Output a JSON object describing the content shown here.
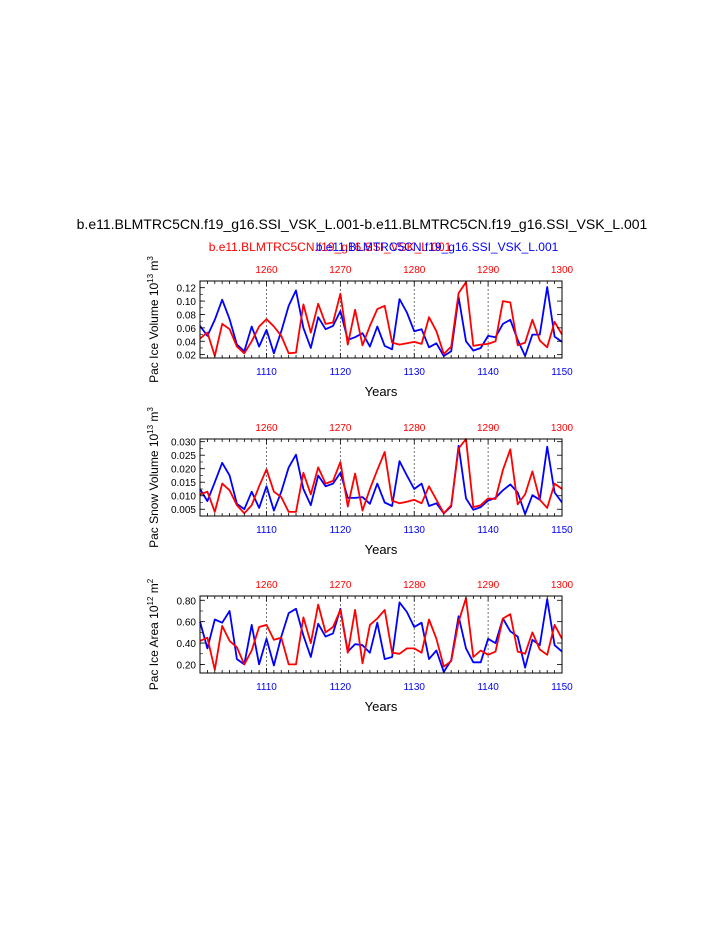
{
  "page": {
    "main_title": "b.e11.BLMTRC5CN.f19_g16.SSI_VSK_L.001-b.e11.BLMTRC5CN.f19_g16.SSI_VSK_L.001",
    "case_red": "b.e11.BLMTRC5CN.f19_g16.SSI_VSK_L.001",
    "case_blue": "b.e11.BLMTRC5CN.f19_g16.SSI_VSK_L.001"
  },
  "colors": {
    "red_series": "#ff0000",
    "blue_series": "#0000ff",
    "axis": "#000000",
    "grid": "#555555"
  },
  "chart_data": [
    {
      "type": "line",
      "ylabel": "Pac Ice Volume 10^13 m^3",
      "ylabel_main": "Pac Ice Volume 10",
      "ylabel_exp": "13",
      "ylabel_unit": "m",
      "ylabel_unit_exp": "3",
      "xlabel": "Years",
      "ylim": [
        0.015,
        0.13
      ],
      "ytick_values": [
        0.02,
        0.04,
        0.06,
        0.08,
        0.1,
        0.12
      ],
      "ytick_labels": [
        "0.02",
        "0.04",
        "0.06",
        "0.08",
        "0.10",
        "0.12"
      ],
      "x_bottom": {
        "range": [
          1101,
          1150
        ],
        "ticks": [
          1110,
          1120,
          1130,
          1140,
          1150
        ],
        "color": "#0000ff"
      },
      "x_top": {
        "range": [
          1251,
          1300
        ],
        "ticks": [
          1260,
          1270,
          1280,
          1290,
          1300
        ],
        "color": "#ff0000"
      },
      "vertical_grid_at_bottom_x": [
        1110,
        1120,
        1130,
        1140
      ],
      "series": [
        {
          "color": "#0000ff",
          "axis": "bottom",
          "values": [
            0.063,
            0.048,
            0.072,
            0.102,
            0.073,
            0.035,
            0.025,
            0.062,
            0.032,
            0.057,
            0.022,
            0.055,
            0.093,
            0.116,
            0.06,
            0.03,
            0.076,
            0.058,
            0.063,
            0.085,
            0.042,
            0.046,
            0.052,
            0.032,
            0.062,
            0.033,
            0.028,
            0.103,
            0.083,
            0.055,
            0.058,
            0.031,
            0.037,
            0.018,
            0.025,
            0.106,
            0.04,
            0.026,
            0.03,
            0.048,
            0.046,
            0.066,
            0.072,
            0.042,
            0.018,
            0.05,
            0.05,
            0.121,
            0.047,
            0.039
          ]
        },
        {
          "color": "#ff0000",
          "axis": "top",
          "values": [
            0.044,
            0.053,
            0.018,
            0.066,
            0.058,
            0.032,
            0.022,
            0.04,
            0.062,
            0.073,
            0.062,
            0.048,
            0.022,
            0.023,
            0.095,
            0.053,
            0.096,
            0.066,
            0.068,
            0.111,
            0.035,
            0.087,
            0.034,
            0.063,
            0.088,
            0.093,
            0.038,
            0.035,
            0.037,
            0.039,
            0.036,
            0.076,
            0.055,
            0.021,
            0.032,
            0.112,
            0.128,
            0.033,
            0.035,
            0.036,
            0.04,
            0.1,
            0.098,
            0.034,
            0.038,
            0.072,
            0.041,
            0.031,
            0.069,
            0.05
          ]
        }
      ]
    },
    {
      "type": "line",
      "ylabel": "Pac Snow Volume 10^13 m^3",
      "ylabel_main": "Pac Snow Volume 10",
      "ylabel_exp": "13",
      "ylabel_unit": "m",
      "ylabel_unit_exp": "3",
      "xlabel": "Years",
      "ylim": [
        0.0025,
        0.031
      ],
      "ytick_values": [
        0.005,
        0.01,
        0.015,
        0.02,
        0.025,
        0.03
      ],
      "ytick_labels": [
        "0.005",
        "0.010",
        "0.015",
        "0.020",
        "0.025",
        "0.030"
      ],
      "x_bottom": {
        "range": [
          1101,
          1150
        ],
        "ticks": [
          1110,
          1120,
          1130,
          1140,
          1150
        ],
        "color": "#0000ff"
      },
      "x_top": {
        "range": [
          1251,
          1300
        ],
        "ticks": [
          1260,
          1270,
          1280,
          1290,
          1300
        ],
        "color": "#ff0000"
      },
      "vertical_grid_at_bottom_x": [
        1110,
        1120,
        1130,
        1140
      ],
      "series": [
        {
          "color": "#0000ff",
          "axis": "bottom",
          "values": [
            0.0125,
            0.008,
            0.015,
            0.0222,
            0.0175,
            0.007,
            0.005,
            0.0115,
            0.0055,
            0.0135,
            0.0045,
            0.0115,
            0.0205,
            0.0252,
            0.0125,
            0.0065,
            0.0175,
            0.0135,
            0.0145,
            0.0185,
            0.0092,
            0.0092,
            0.0095,
            0.007,
            0.0145,
            0.0075,
            0.0062,
            0.0228,
            0.0175,
            0.0125,
            0.0145,
            0.0062,
            0.0072,
            0.0035,
            0.006,
            0.0285,
            0.009,
            0.0048,
            0.0058,
            0.0082,
            0.0092,
            0.012,
            0.0142,
            0.0112,
            0.0032,
            0.0102,
            0.0085,
            0.0282,
            0.0112,
            0.0075
          ]
        },
        {
          "color": "#ff0000",
          "axis": "top",
          "values": [
            0.0105,
            0.0115,
            0.004,
            0.0145,
            0.012,
            0.0065,
            0.0035,
            0.0065,
            0.0135,
            0.0198,
            0.0115,
            0.0095,
            0.004,
            0.004,
            0.0185,
            0.0105,
            0.0205,
            0.0145,
            0.0155,
            0.0225,
            0.006,
            0.0182,
            0.0045,
            0.0125,
            0.0195,
            0.0262,
            0.0082,
            0.0072,
            0.0078,
            0.0085,
            0.0072,
            0.0135,
            0.0085,
            0.0035,
            0.0065,
            0.0275,
            0.031,
            0.0058,
            0.0065,
            0.009,
            0.0088,
            0.0195,
            0.0272,
            0.0068,
            0.0105,
            0.019,
            0.0085,
            0.0055,
            0.0145,
            0.0125
          ]
        }
      ]
    },
    {
      "type": "line",
      "ylabel": "Pac Ice Area 10^12 m^2",
      "ylabel_main": "Pac Ice Area 10",
      "ylabel_exp": "12",
      "ylabel_unit": "m",
      "ylabel_unit_exp": "2",
      "xlabel": "Years",
      "ylim": [
        0.12,
        0.84
      ],
      "ytick_values": [
        0.2,
        0.4,
        0.6,
        0.8
      ],
      "ytick_labels": [
        "0.20",
        "0.40",
        "0.60",
        "0.80"
      ],
      "x_bottom": {
        "range": [
          1101,
          1150
        ],
        "ticks": [
          1110,
          1120,
          1130,
          1140,
          1150
        ],
        "color": "#0000ff"
      },
      "x_top": {
        "range": [
          1251,
          1300
        ],
        "ticks": [
          1260,
          1270,
          1280,
          1290,
          1300
        ],
        "color": "#ff0000"
      },
      "vertical_grid_at_bottom_x": [
        1110,
        1120,
        1130,
        1140
      ],
      "series": [
        {
          "color": "#0000ff",
          "axis": "bottom",
          "values": [
            0.6,
            0.35,
            0.62,
            0.59,
            0.7,
            0.25,
            0.2,
            0.57,
            0.2,
            0.44,
            0.19,
            0.46,
            0.68,
            0.72,
            0.47,
            0.27,
            0.58,
            0.46,
            0.49,
            0.72,
            0.32,
            0.39,
            0.38,
            0.31,
            0.59,
            0.25,
            0.27,
            0.78,
            0.69,
            0.55,
            0.59,
            0.25,
            0.33,
            0.13,
            0.24,
            0.65,
            0.35,
            0.22,
            0.22,
            0.44,
            0.4,
            0.63,
            0.51,
            0.46,
            0.17,
            0.43,
            0.38,
            0.81,
            0.38,
            0.32
          ]
        },
        {
          "color": "#ff0000",
          "axis": "top",
          "values": [
            0.42,
            0.45,
            0.15,
            0.56,
            0.42,
            0.36,
            0.2,
            0.33,
            0.55,
            0.57,
            0.43,
            0.45,
            0.2,
            0.2,
            0.64,
            0.4,
            0.76,
            0.5,
            0.55,
            0.71,
            0.31,
            0.71,
            0.21,
            0.57,
            0.63,
            0.71,
            0.31,
            0.3,
            0.35,
            0.35,
            0.31,
            0.62,
            0.44,
            0.18,
            0.23,
            0.6,
            0.82,
            0.27,
            0.33,
            0.29,
            0.32,
            0.63,
            0.67,
            0.32,
            0.3,
            0.5,
            0.34,
            0.29,
            0.57,
            0.44
          ]
        }
      ]
    }
  ]
}
